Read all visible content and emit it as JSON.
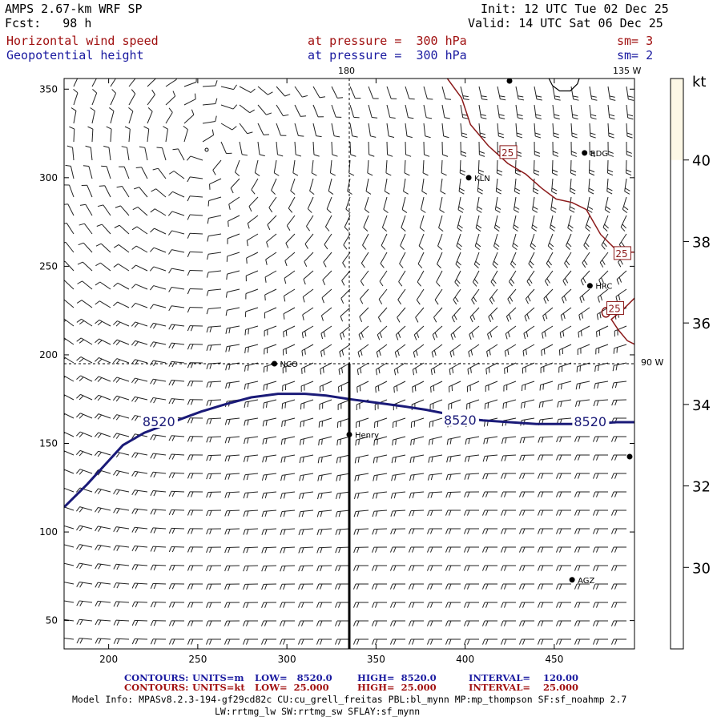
{
  "header": {
    "model": "AMPS 2.67-km WRF SP",
    "forecast": "Fcst:   98 h",
    "init": "Init: 12 UTC Tue 02 Dec 25",
    "valid": "Valid: 14 UTC Sat 06 Dec 25",
    "fields": [
      {
        "name": "Horizontal wind speed",
        "level": "at pressure =  300 hPa",
        "smooth": "sm= 3"
      },
      {
        "name": "Geopotential height",
        "level": "at pressure =  300 hPa",
        "smooth": "sm= 2"
      }
    ]
  },
  "map_labels": {
    "lon_180": "180",
    "lon_135w": "135 W",
    "lon_90w": "90 W"
  },
  "stations": [
    {
      "name": "RDG",
      "x": 467,
      "y": 314
    },
    {
      "name": "KLN",
      "x": 402,
      "y": 300
    },
    {
      "name": "HRC",
      "x": 470,
      "y": 239
    },
    {
      "name": "NCO",
      "x": 293,
      "y": 195
    },
    {
      "name": "Henry",
      "x": 335,
      "y": 155
    },
    {
      "name": "AGZ",
      "x": 460,
      "y": 73
    }
  ],
  "colors": {
    "height_contour": "#1a1a78",
    "wind_contour": "#8b1a1a",
    "barbs": "#222222",
    "colorbar_fill": "#fdf8e6"
  },
  "footer": {
    "line1": {
      "label": "CONTOURS:",
      "units": "UNITS=m",
      "low": "LOW=   8520.0",
      "high": "HIGH=  8520.0",
      "interval": "INTERVAL=    120.00"
    },
    "line2": {
      "label": "CONTOURS:",
      "units": "UNITS=kt",
      "low": "LOW=  25.000",
      "high": "HIGH=  25.000",
      "interval": "INTERVAL=    25.000"
    },
    "info1": "Model Info: MPASv8.2.3-194-gf29cd82c CU:cu_grell_freitas PBL:bl_mynn MP:mp_thompson SF:sf_noahmp 2.7",
    "info2": "LW:rrtmg_lw SW:rrtmg_sw SFLAY:sf_mynn"
  },
  "chart_data": {
    "type": "contour",
    "xlim": [
      175,
      495
    ],
    "ylim": [
      34,
      356
    ],
    "x_ticks": [
      200,
      250,
      300,
      350,
      400,
      450
    ],
    "y_ticks": [
      50,
      100,
      150,
      200,
      250,
      300,
      350
    ],
    "colorbar": {
      "unit": "kt",
      "ticks": [
        30,
        32,
        34,
        36,
        38,
        40
      ],
      "range": [
        28,
        42
      ],
      "filled_above": 40
    },
    "height_contours": [
      {
        "value": 8520,
        "label": "8520",
        "points": [
          [
            175,
            114
          ],
          [
            188,
            127
          ],
          [
            198,
            138
          ],
          [
            208,
            149
          ],
          [
            220,
            156
          ],
          [
            233,
            161
          ],
          [
            252,
            168
          ],
          [
            265,
            172
          ],
          [
            280,
            176
          ],
          [
            295,
            178
          ],
          [
            310,
            178
          ],
          [
            322,
            177
          ],
          [
            335,
            175
          ],
          [
            350,
            173
          ],
          [
            365,
            171
          ],
          [
            378,
            169
          ],
          [
            388,
            167
          ],
          [
            400,
            164
          ],
          [
            410,
            163
          ],
          [
            425,
            162
          ],
          [
            440,
            161
          ],
          [
            455,
            161
          ],
          [
            470,
            161
          ],
          [
            485,
            162
          ],
          [
            495,
            162
          ]
        ],
        "label_positions": [
          [
            146,
            120
          ],
          [
            228,
            162
          ],
          [
            397,
            163
          ],
          [
            470,
            162
          ]
        ]
      }
    ],
    "wind_contours": [
      {
        "value": 25,
        "label": "25",
        "points": [
          [
            390,
            356
          ],
          [
            398,
            345
          ],
          [
            403,
            330
          ],
          [
            413,
            318
          ],
          [
            424,
            308
          ],
          [
            434,
            302
          ],
          [
            443,
            294
          ],
          [
            451,
            288
          ],
          [
            460,
            286
          ],
          [
            468,
            282
          ],
          [
            476,
            268
          ],
          [
            484,
            260
          ],
          [
            490,
            258
          ],
          [
            495,
            258
          ]
        ]
      },
      {
        "value": 25,
        "label": "25",
        "points": [
          [
            495,
            232
          ],
          [
            489,
            226
          ],
          [
            482,
            220
          ],
          [
            486,
            214
          ],
          [
            491,
            208
          ],
          [
            495,
            206
          ]
        ]
      }
    ],
    "wind_contour_labels": [
      [
        424,
        314
      ],
      [
        488,
        257
      ],
      [
        484,
        226
      ]
    ],
    "cross_lines": {
      "x": 335,
      "y": 195
    },
    "thick_line": {
      "x": 335,
      "y_from": 195,
      "y_to": 34
    }
  }
}
